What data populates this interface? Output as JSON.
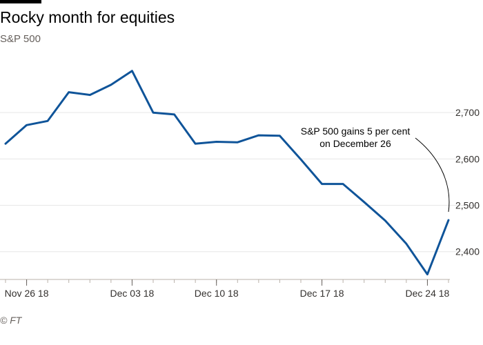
{
  "title": "Rocky month for equities",
  "subtitle": "S&P 500",
  "source": "© FT",
  "chart_data": {
    "type": "line",
    "title": "Rocky month for equities",
    "subtitle": "S&P 500",
    "series": [
      {
        "color": "#0f5499",
        "x": [
          "2018-11-23",
          "2018-11-26",
          "2018-11-27",
          "2018-11-28",
          "2018-11-29",
          "2018-11-30",
          "2018-12-03",
          "2018-12-04",
          "2018-12-06",
          "2018-12-07",
          "2018-12-10",
          "2018-12-11",
          "2018-12-12",
          "2018-12-13",
          "2018-12-14",
          "2018-12-17",
          "2018-12-18",
          "2018-12-19",
          "2018-12-20",
          "2018-12-21",
          "2018-12-24",
          "2018-12-26"
        ],
        "y": [
          2633,
          2673,
          2682,
          2744,
          2738,
          2760,
          2790,
          2700,
          2696,
          2633,
          2637,
          2636,
          2651,
          2650,
          2599,
          2546,
          2546,
          2507,
          2467,
          2417,
          2351,
          2468
        ]
      }
    ],
    "x_ticks": [
      {
        "date": "2018-11-26",
        "label": "Nov 26 18"
      },
      {
        "date": "2018-12-03",
        "label": "Dec 03 18"
      },
      {
        "date": "2018-12-10",
        "label": "Dec 10 18"
      },
      {
        "date": "2018-12-17",
        "label": "Dec 17 18"
      },
      {
        "date": "2018-12-24",
        "label": "Dec 24 18"
      }
    ],
    "y_ticks": [
      {
        "value": 2400,
        "label": "2,400"
      },
      {
        "value": 2500,
        "label": "2,500"
      },
      {
        "value": 2600,
        "label": "2,600"
      },
      {
        "value": 2700,
        "label": "2,700"
      }
    ],
    "ylim": [
      2340,
      2800
    ],
    "grid": "horizontal",
    "y_axis_side": "right",
    "annotation": {
      "lines": [
        "S&P 500 gains 5 per cent",
        "on December 26"
      ],
      "target_date": "2018-12-26"
    }
  }
}
